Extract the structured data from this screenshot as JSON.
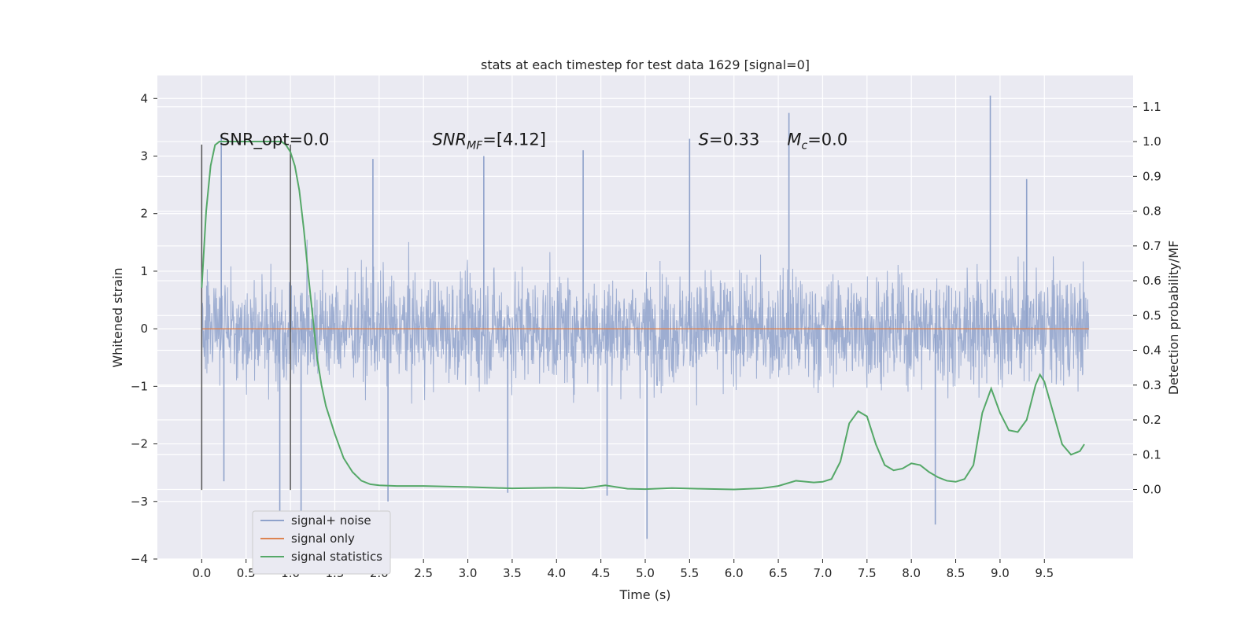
{
  "chart_data": {
    "type": "line",
    "title": "stats at each timestep for test data 1629 [signal=0]",
    "xlabel": "Time (s)",
    "ylabel": "Whitened strain",
    "ylabel_right": "Detection probability/MF",
    "xlim": [
      -0.5,
      10.5
    ],
    "ylim": [
      -4.0,
      4.4
    ],
    "ylim_right": [
      -0.2,
      1.19
    ],
    "xticks": [
      0.0,
      0.5,
      1.0,
      1.5,
      2.0,
      2.5,
      3.0,
      3.5,
      4.0,
      4.5,
      5.0,
      5.5,
      6.0,
      6.5,
      7.0,
      7.5,
      8.0,
      8.5,
      9.0,
      9.5
    ],
    "xtick_labels": [
      "0.0",
      "0.5",
      "1.0",
      "1.5",
      "2.0",
      "2.5",
      "3.0",
      "3.5",
      "4.0",
      "4.5",
      "5.0",
      "5.5",
      "6.0",
      "6.5",
      "7.0",
      "7.5",
      "8.0",
      "8.5",
      "9.0",
      "9.5"
    ],
    "yticks": [
      -4,
      -3,
      -2,
      -1,
      0,
      1,
      2,
      3,
      4
    ],
    "ytick_labels": [
      "−4",
      "−3",
      "−2",
      "−1",
      "0",
      "1",
      "2",
      "3",
      "4"
    ],
    "yticks_right": [
      0.0,
      0.1,
      0.2,
      0.3,
      0.4,
      0.5,
      0.6,
      0.7,
      0.8,
      0.9,
      1.0,
      1.1
    ],
    "ytick_labels_right": [
      "0.0",
      "0.1",
      "0.2",
      "0.3",
      "0.4",
      "0.5",
      "0.6",
      "0.7",
      "0.8",
      "0.9",
      "1.0",
      "1.1"
    ],
    "grid": true,
    "legend": {
      "placement": "lower-left",
      "entries": [
        "signal+ noise",
        "signal only",
        "signal statistics"
      ]
    },
    "annotations": [
      {
        "text": "SNR_opt=0.0",
        "x": 0.2,
        "y": 3.3
      },
      {
        "text": "SNR_MF=[4.12]",
        "x": 2.6,
        "y": 3.3
      },
      {
        "text": "S=0.33",
        "x": 5.6,
        "y": 3.3
      },
      {
        "text": "M_c=0.0",
        "x": 6.6,
        "y": 3.3
      }
    ],
    "window_markers": [
      {
        "x": 0.0,
        "y_range": [
          -2.8,
          3.2
        ]
      },
      {
        "x": 1.0,
        "y_range": [
          -2.8,
          3.2
        ]
      }
    ],
    "series": [
      {
        "name": "signal+ noise",
        "axis": "left",
        "color": "#8fa2cb",
        "x_range": [
          0.0,
          10.0
        ],
        "typical_band": [
          -1.3,
          1.35
        ],
        "min": -3.65,
        "max": 4.05,
        "spikes": [
          {
            "x": 5.02,
            "y": -3.65
          },
          {
            "x": 8.27,
            "y": -3.4
          },
          {
            "x": 1.12,
            "y": -3.35
          },
          {
            "x": 0.88,
            "y": -3.2
          },
          {
            "x": 3.45,
            "y": -2.85
          },
          {
            "x": 4.57,
            "y": -2.9
          },
          {
            "x": 2.1,
            "y": -3.0
          },
          {
            "x": 0.25,
            "y": -2.65
          },
          {
            "x": 8.89,
            "y": 4.05
          },
          {
            "x": 6.62,
            "y": 3.75
          },
          {
            "x": 5.5,
            "y": 3.3
          },
          {
            "x": 0.22,
            "y": 3.35
          },
          {
            "x": 1.93,
            "y": 2.95
          },
          {
            "x": 3.18,
            "y": 3.0
          },
          {
            "x": 4.3,
            "y": 3.1
          },
          {
            "x": 9.3,
            "y": 2.6
          }
        ]
      },
      {
        "name": "signal only",
        "axis": "left",
        "color": "#dd8452",
        "x": [
          0.0,
          10.0
        ],
        "y": [
          0.0,
          0.0
        ]
      },
      {
        "name": "signal statistics",
        "axis": "right",
        "color": "#55a868",
        "x": [
          0.0,
          0.05,
          0.1,
          0.15,
          0.2,
          0.3,
          0.4,
          0.5,
          0.6,
          0.7,
          0.8,
          0.9,
          0.95,
          1.0,
          1.05,
          1.1,
          1.15,
          1.2,
          1.25,
          1.3,
          1.35,
          1.4,
          1.5,
          1.6,
          1.7,
          1.8,
          1.9,
          2.0,
          2.2,
          2.5,
          3.0,
          3.5,
          4.0,
          4.3,
          4.55,
          4.8,
          5.0,
          5.3,
          5.6,
          6.0,
          6.3,
          6.5,
          6.7,
          6.9,
          7.0,
          7.1,
          7.2,
          7.3,
          7.4,
          7.5,
          7.6,
          7.7,
          7.8,
          7.9,
          8.0,
          8.1,
          8.2,
          8.3,
          8.4,
          8.5,
          8.6,
          8.7,
          8.8,
          8.9,
          9.0,
          9.1,
          9.2,
          9.3,
          9.4,
          9.45,
          9.5,
          9.6,
          9.7,
          9.8,
          9.9,
          9.95
        ],
        "y": [
          0.58,
          0.8,
          0.93,
          0.99,
          1.0,
          1.0,
          1.0,
          1.0,
          1.0,
          1.0,
          1.0,
          1.0,
          0.99,
          0.97,
          0.93,
          0.86,
          0.75,
          0.62,
          0.5,
          0.38,
          0.3,
          0.24,
          0.16,
          0.09,
          0.05,
          0.025,
          0.015,
          0.012,
          0.01,
          0.01,
          0.007,
          0.003,
          0.005,
          0.003,
          0.012,
          0.002,
          0.001,
          0.004,
          0.002,
          0.0,
          0.003,
          0.01,
          0.025,
          0.02,
          0.022,
          0.03,
          0.08,
          0.19,
          0.225,
          0.21,
          0.13,
          0.07,
          0.055,
          0.06,
          0.075,
          0.07,
          0.05,
          0.035,
          0.025,
          0.022,
          0.03,
          0.07,
          0.22,
          0.29,
          0.22,
          0.17,
          0.165,
          0.2,
          0.3,
          0.33,
          0.31,
          0.22,
          0.13,
          0.1,
          0.11,
          0.13
        ]
      }
    ]
  }
}
